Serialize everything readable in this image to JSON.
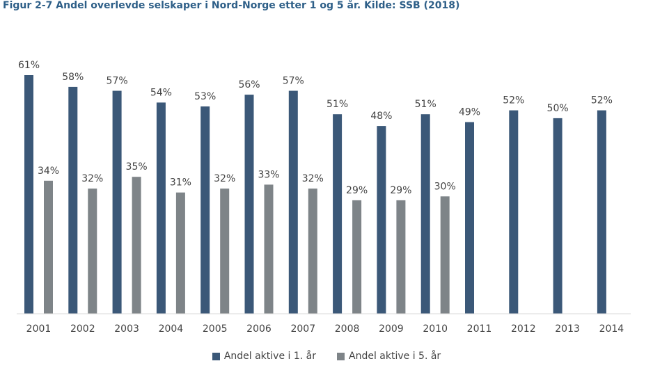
{
  "chart_data": {
    "type": "bar",
    "title": "Figur 2-7  Andel overlevde selskaper i Nord-Norge etter 1 og 5 år. Kilde: SSB (2018)",
    "categories": [
      "2001",
      "2002",
      "2003",
      "2004",
      "2005",
      "2006",
      "2007",
      "2008",
      "2009",
      "2010",
      "2011",
      "2012",
      "2013",
      "2014"
    ],
    "series": [
      {
        "name": "Andel aktive i 1. år",
        "color": "#3b5878",
        "values": [
          61,
          58,
          57,
          54,
          53,
          56,
          57,
          51,
          48,
          51,
          49,
          52,
          50,
          52
        ],
        "labels": [
          "61%",
          "58%",
          "57%",
          "54%",
          "53%",
          "56%",
          "57%",
          "51%",
          "48%",
          "51%",
          "49%",
          "52%",
          "50%",
          "52%"
        ]
      },
      {
        "name": "Andel aktive i 5. år",
        "color": "#7e8488",
        "values": [
          34,
          32,
          35,
          31,
          32,
          33,
          32,
          29,
          29,
          30,
          null,
          null,
          null,
          null
        ],
        "labels": [
          "34%",
          "32%",
          "35%",
          "31%",
          "32%",
          "33%",
          "32%",
          "29%",
          "29%",
          "30%",
          "",
          "",
          "",
          ""
        ]
      }
    ],
    "ylim": [
      0,
      61
    ],
    "grid": false,
    "legend_position": "bottom"
  }
}
